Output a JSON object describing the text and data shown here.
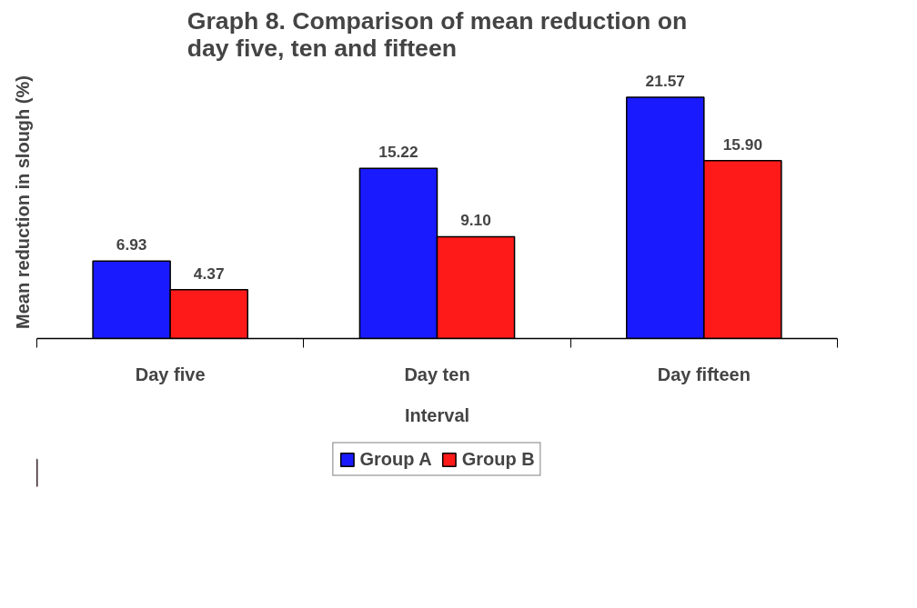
{
  "chart_data": {
    "type": "bar",
    "title": "Graph 8. Comparison of mean reduction on day five, ten and fifteen",
    "xlabel": "Interval",
    "ylabel": "Mean reduction in slough (%)",
    "categories": [
      "Day five",
      "Day ten",
      "Day fifteen"
    ],
    "series": [
      {
        "name": "Group A",
        "color": "#1a1aff",
        "values": [
          6.93,
          15.22,
          21.57
        ],
        "value_labels": [
          "6.93",
          "15.22",
          "21.57"
        ]
      },
      {
        "name": "Group B",
        "color": "#ff1a1a",
        "values": [
          4.37,
          9.1,
          15.9
        ],
        "value_labels": [
          "4.37",
          "9.10",
          "15.90"
        ]
      }
    ],
    "legend": "bottom",
    "grid": false
  }
}
